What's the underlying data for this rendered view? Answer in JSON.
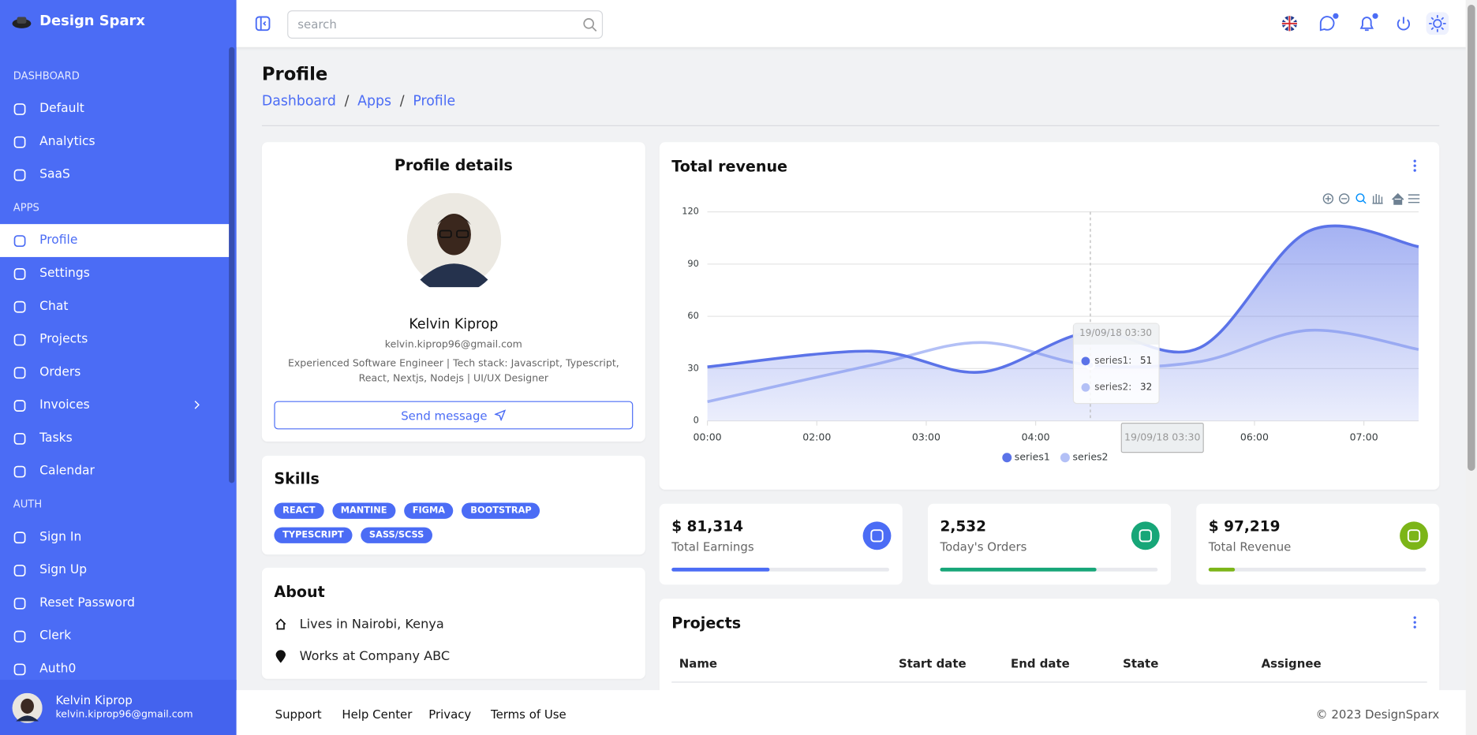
{
  "brand": "Design Sparx",
  "search_placeholder": "search",
  "sidebar": {
    "sections": [
      {
        "title": "DASHBOARD",
        "items": [
          {
            "label": "Default"
          },
          {
            "label": "Analytics"
          },
          {
            "label": "SaaS"
          }
        ]
      },
      {
        "title": "APPS",
        "items": [
          {
            "label": "Profile",
            "active": true
          },
          {
            "label": "Settings"
          },
          {
            "label": "Chat"
          },
          {
            "label": "Projects"
          },
          {
            "label": "Orders"
          },
          {
            "label": "Invoices",
            "submenu": true
          },
          {
            "label": "Tasks"
          },
          {
            "label": "Calendar"
          }
        ]
      },
      {
        "title": "AUTH",
        "items": [
          {
            "label": "Sign In"
          },
          {
            "label": "Sign Up"
          },
          {
            "label": "Reset Password"
          },
          {
            "label": "Clerk"
          },
          {
            "label": "Auth0"
          }
        ]
      }
    ],
    "user": {
      "name": "Kelvin Kiprop",
      "email": "kelvin.kiprop96@gmail.com"
    }
  },
  "page": {
    "title": "Profile",
    "breadcrumbs": [
      "Dashboard",
      "Apps",
      "Profile"
    ]
  },
  "profile": {
    "heading": "Profile details",
    "name": "Kelvin Kiprop",
    "email": "kelvin.kiprop96@gmail.com",
    "bio": "Experienced Software Engineer | Tech stack: Javascript, Typescript, React, Nextjs, Nodejs | UI/UX Designer",
    "button": "Send message"
  },
  "skills": {
    "heading": "Skills",
    "items": [
      "REACT",
      "MANTINE",
      "FIGMA",
      "BOOTSTRAP",
      "TYPESCRIPT",
      "SASS/SCSS"
    ]
  },
  "about": {
    "heading": "About",
    "items": [
      "Lives in Nairobi, Kenya",
      "Works at Company ABC"
    ]
  },
  "chart_data": {
    "type": "area",
    "title": "Total revenue",
    "x": [
      0,
      1.5,
      2.5,
      3.5,
      4.5,
      5.5,
      6.5
    ],
    "xlim": [
      0,
      6.5
    ],
    "xticks": [
      {
        "value": 0,
        "label": "00:00"
      },
      {
        "value": 1,
        "label": "02:00"
      },
      {
        "value": 2,
        "label": "03:00"
      },
      {
        "value": 3,
        "label": "04:00"
      },
      {
        "value": 5,
        "label": "06:00"
      },
      {
        "value": 6,
        "label": "07:00"
      }
    ],
    "ylim": [
      0,
      120
    ],
    "yticks": [
      0,
      30,
      60,
      90,
      120
    ],
    "grid": true,
    "legend": "bottom",
    "series": [
      {
        "name": "series1",
        "color": "#5b73e8",
        "values": [
          31,
          40,
          28,
          51,
          42,
          109,
          100
        ]
      },
      {
        "name": "series2",
        "color": "#b3c0f6",
        "values": [
          11,
          32,
          45,
          32,
          34,
          52,
          41
        ]
      }
    ],
    "tooltip": {
      "title": "19/09/18 03:30",
      "index": 3
    }
  },
  "stats": [
    {
      "value": "$ 81,314",
      "label": "Total Earnings",
      "progress": 45,
      "color": "#4b6cf5"
    },
    {
      "value": "2,532",
      "label": "Today's Orders",
      "progress": 72,
      "color": "#17a678"
    },
    {
      "value": "$ 97,219",
      "label": "Total Revenue",
      "progress": 12,
      "color": "#7cb518"
    }
  ],
  "projects": {
    "heading": "Projects",
    "columns": [
      "Name",
      "Start date",
      "End date",
      "State",
      "Assignee"
    ]
  },
  "footer": {
    "links": [
      "Support",
      "Help Center",
      "Privacy",
      "Terms of Use"
    ],
    "copyright": "© 2023 DesignSparx"
  }
}
